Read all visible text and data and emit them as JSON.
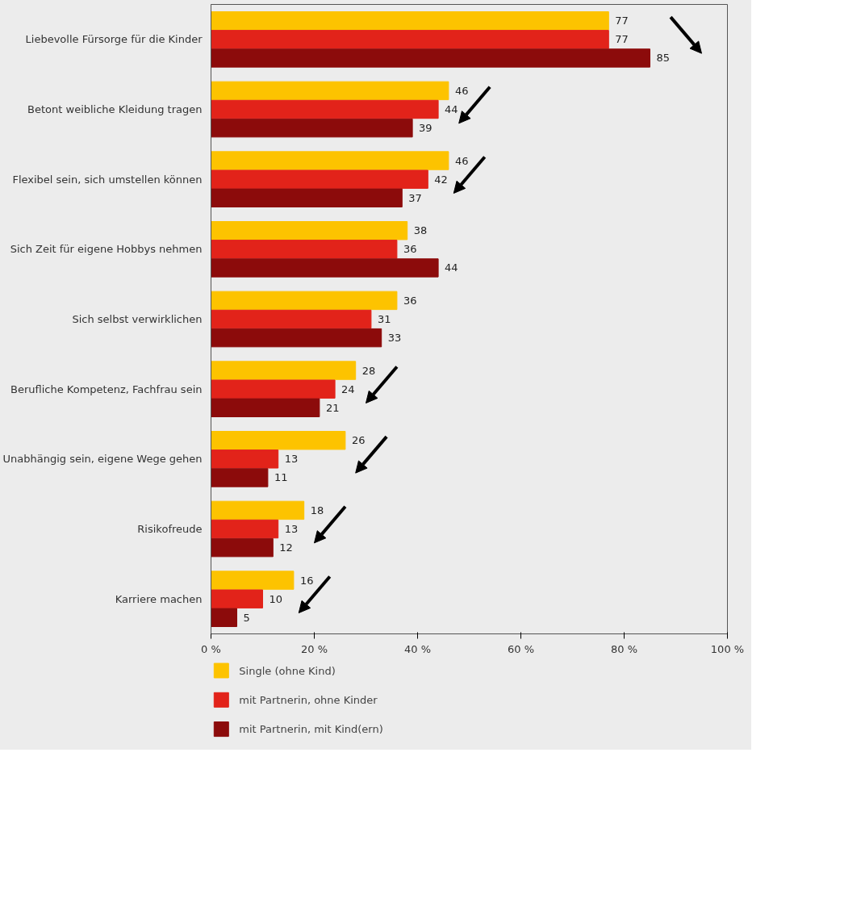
{
  "chart_data": {
    "type": "bar",
    "orientation": "horizontal",
    "categories": [
      "Liebevolle Fürsorge für die Kinder",
      "Betont weibliche Kleidung tragen",
      "Flexibel sein, sich umstellen können",
      "Sich Zeit für eigene Hobbys nehmen",
      "Sich selbst verwirklichen",
      "Berufliche Kompetenz, Fachfrau sein",
      "Unabhängig sein, eigene Wege gehen",
      "Risikofreude",
      "Karriere machen"
    ],
    "series": [
      {
        "name": "Single (ohne Kind)",
        "color": "#fdc300",
        "values": [
          77,
          46,
          46,
          38,
          36,
          28,
          26,
          18,
          16
        ]
      },
      {
        "name": "mit Partnerin, ohne Kinder",
        "color": "#e2231a",
        "values": [
          77,
          44,
          42,
          36,
          31,
          24,
          13,
          13,
          10
        ]
      },
      {
        "name": "mit Partnerin, mit Kind(ern)",
        "color": "#8c0b0b",
        "values": [
          85,
          39,
          37,
          44,
          33,
          21,
          11,
          12,
          5
        ]
      }
    ],
    "data_labels": true,
    "xlim": [
      0,
      100
    ],
    "xticks": [
      {
        "value": 0,
        "label": "0 %"
      },
      {
        "value": 20,
        "label": "20 %"
      },
      {
        "value": 40,
        "label": "40 %"
      },
      {
        "value": 60,
        "label": "60 %"
      },
      {
        "value": 80,
        "label": "80 %"
      },
      {
        "value": 100,
        "label": "100 %"
      }
    ],
    "grid": false,
    "legend": "bottom"
  }
}
